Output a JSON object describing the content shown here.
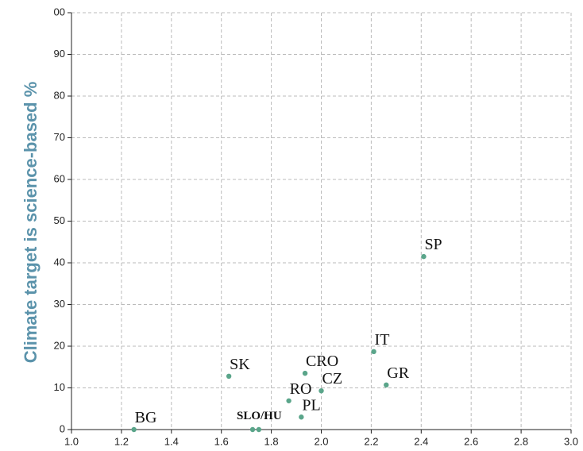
{
  "chart_data": {
    "type": "scatter",
    "ylabel": "Climate target is science-based %",
    "labels": [
      "BG",
      "SK",
      "SLO/HU",
      null,
      "RO",
      "PL",
      "CRO",
      "CZ",
      "IT",
      "GR",
      "SP"
    ],
    "x": [
      1.25,
      1.63,
      1.725,
      1.75,
      1.87,
      1.92,
      1.935,
      2.0,
      2.21,
      2.26,
      2.41
    ],
    "values": [
      0,
      12.8,
      0,
      0,
      6.9,
      3.0,
      13.5,
      9.3,
      18.7,
      10.7,
      41.5
    ],
    "color": "#5aa58a",
    "xlim": [
      1.0,
      3.0
    ],
    "xticks": [
      {
        "value": 1.0,
        "label": "1.0"
      },
      1.2,
      1.4,
      1.6,
      1.8,
      {
        "value": 2.0,
        "label": "2.0"
      },
      2.2,
      2.4,
      2.6,
      2.8,
      {
        "value": 3.0,
        "label": "3.0"
      }
    ],
    "ylim": [
      0,
      100
    ],
    "yticks": [
      0,
      10,
      20,
      30,
      40,
      50,
      60,
      70,
      80,
      90,
      {
        "value": 100,
        "label": "00"
      }
    ],
    "grid": true
  }
}
